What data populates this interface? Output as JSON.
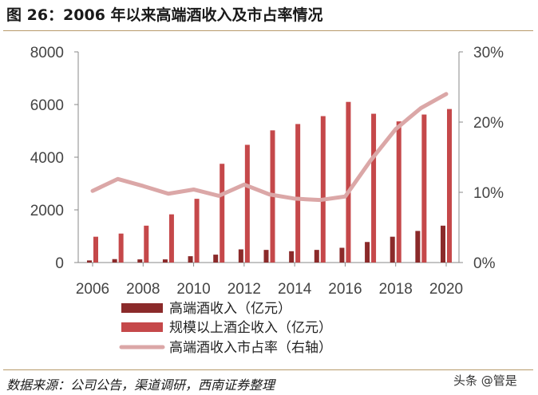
{
  "header": {
    "title": "图 26：2006 年以来高端酒收入及市占率情况"
  },
  "footer": {
    "source": "数据来源：公司公告，渠道调研，西南证券整理",
    "watermark": "头条 @管是"
  },
  "colors": {
    "revenue_high_end": "#8b2a2a",
    "revenue_industry": "#c5484a",
    "share_line": "#dba7a7",
    "axis": "#888888",
    "rule": "#b89a6a"
  },
  "chart_data": {
    "type": "bar",
    "title": "2006 年以来高端酒收入及市占率情况",
    "categories": [
      2006,
      2007,
      2008,
      2009,
      2010,
      2011,
      2012,
      2013,
      2014,
      2015,
      2016,
      2017,
      2018,
      2019,
      2020
    ],
    "x_tick_labels": [
      "2006",
      "2008",
      "2010",
      "2012",
      "2014",
      "2016",
      "2018",
      "2020"
    ],
    "y_left": {
      "ylim": [
        0,
        8000
      ],
      "tick_labels": [
        "0",
        "2000",
        "4000",
        "6000",
        "8000"
      ]
    },
    "y_right": {
      "ylim": [
        0,
        30
      ],
      "tick_labels": [
        "0%",
        "10%",
        "20%",
        "30%"
      ]
    },
    "series": [
      {
        "name": "高端酒收入（亿元）",
        "type": "bar",
        "axis": "left",
        "values": [
          80,
          130,
          120,
          120,
          240,
          300,
          500,
          480,
          430,
          480,
          560,
          780,
          980,
          1200,
          1400
        ]
      },
      {
        "name": "规模以上酒企收入（亿元）",
        "type": "bar",
        "axis": "left",
        "values": [
          980,
          1100,
          1400,
          1830,
          2420,
          3750,
          4470,
          5020,
          5260,
          5560,
          6100,
          5650,
          5360,
          5620,
          5830
        ]
      },
      {
        "name": "高端酒收入市占率（右轴）",
        "type": "line",
        "axis": "right",
        "values": [
          10.2,
          11.9,
          10.9,
          9.8,
          10.4,
          9.5,
          11.1,
          9.7,
          9.1,
          8.9,
          9.4,
          14.5,
          19.0,
          22.0,
          24.0
        ]
      }
    ],
    "legend_position": "bottom"
  }
}
